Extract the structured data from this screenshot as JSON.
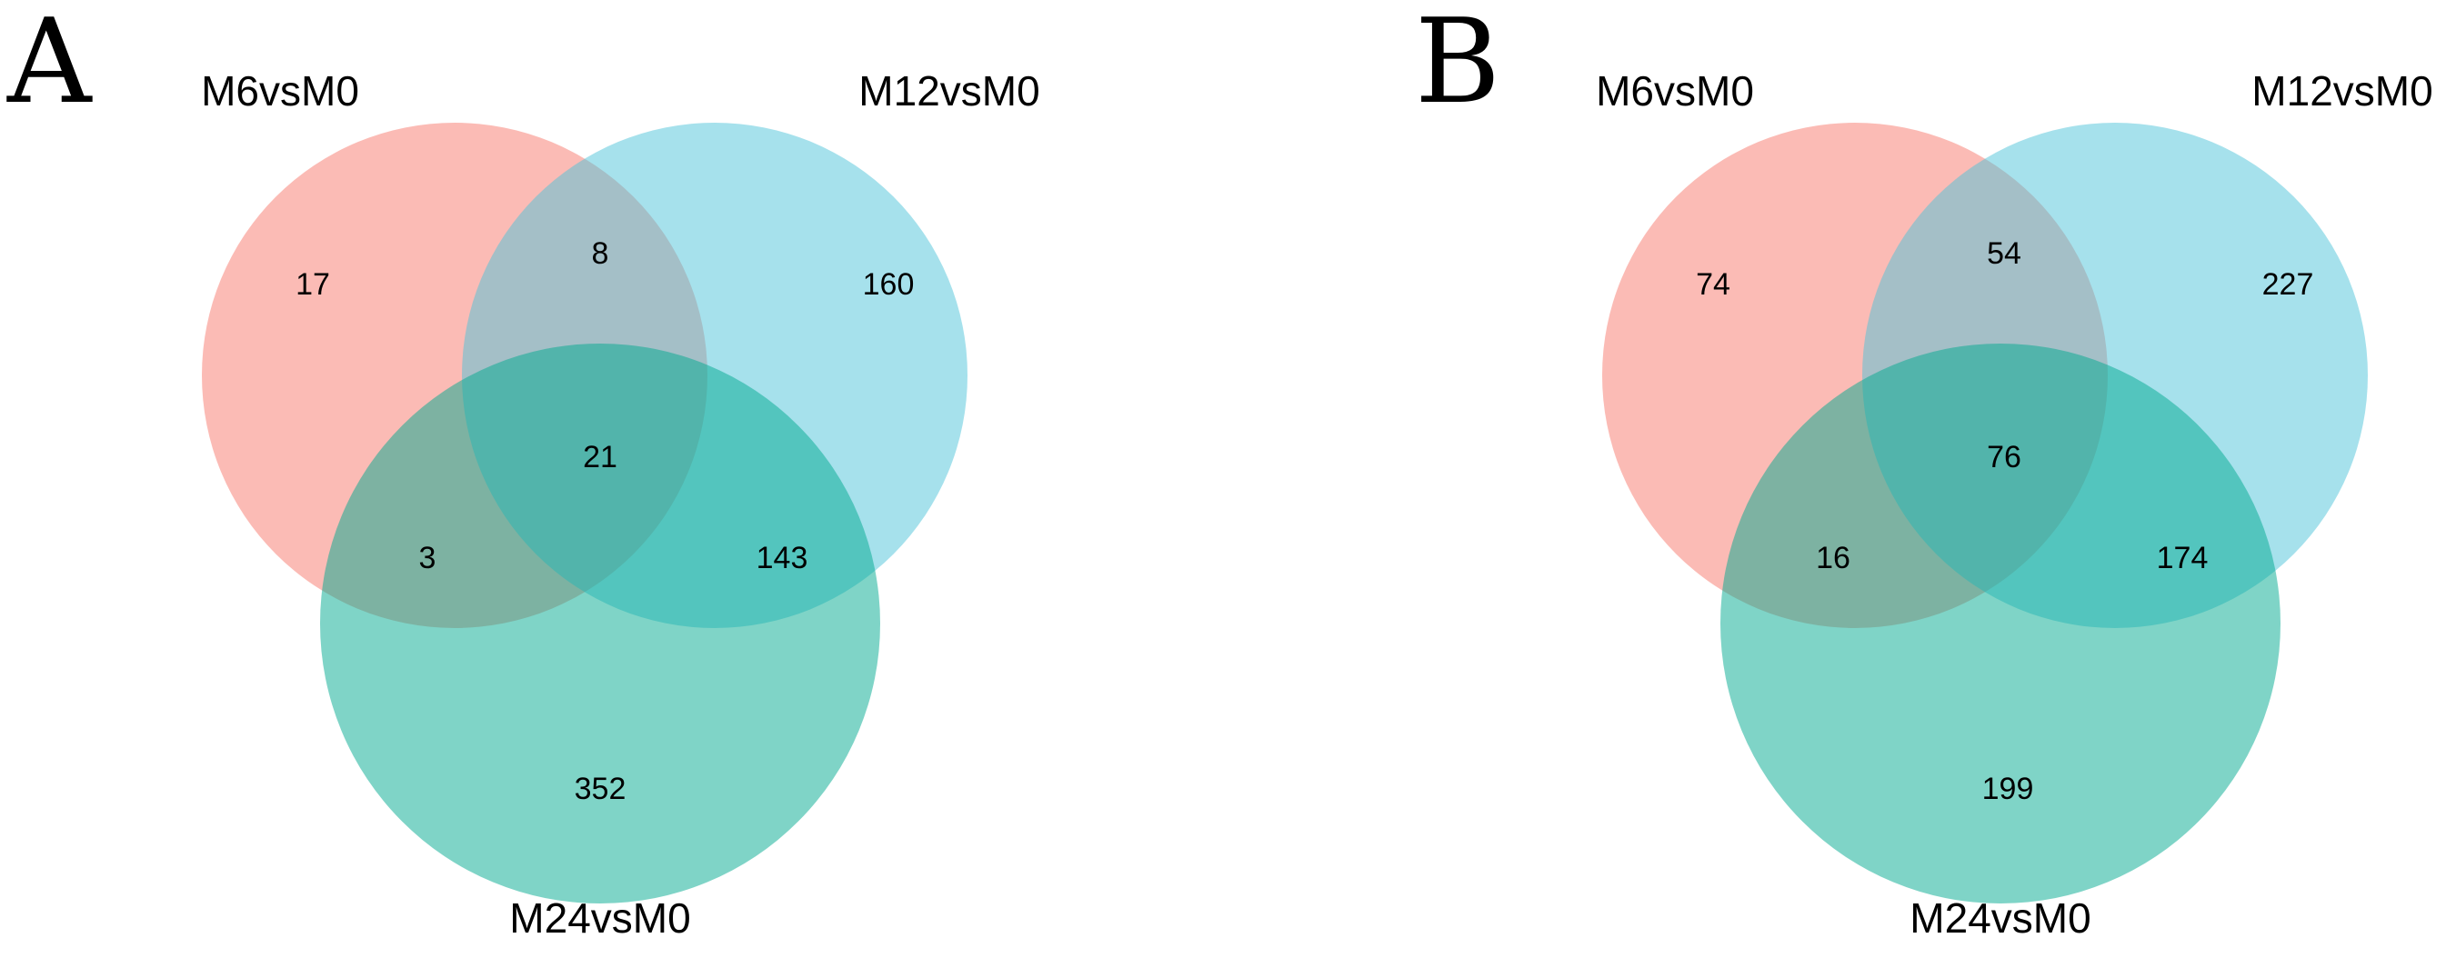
{
  "panels": [
    {
      "letter": "A",
      "sets": [
        "M6vsM0",
        "M12vsM0",
        "M24vsM0"
      ],
      "regions": {
        "a_only": "17",
        "b_only": "160",
        "c_only": "352",
        "ab": "8",
        "ac": "3",
        "bc": "143",
        "abc": "21"
      }
    },
    {
      "letter": "B",
      "sets": [
        "M6vsM0",
        "M12vsM0",
        "M24vsM0"
      ],
      "regions": {
        "a_only": "74",
        "b_only": "227",
        "c_only": "199",
        "ab": "54",
        "ac": "16",
        "bc": "174",
        "abc": "76"
      }
    }
  ],
  "colors": {
    "set_a": "#f8776c",
    "set_b": "#4dc4d9",
    "set_c": "#00a98f"
  }
}
